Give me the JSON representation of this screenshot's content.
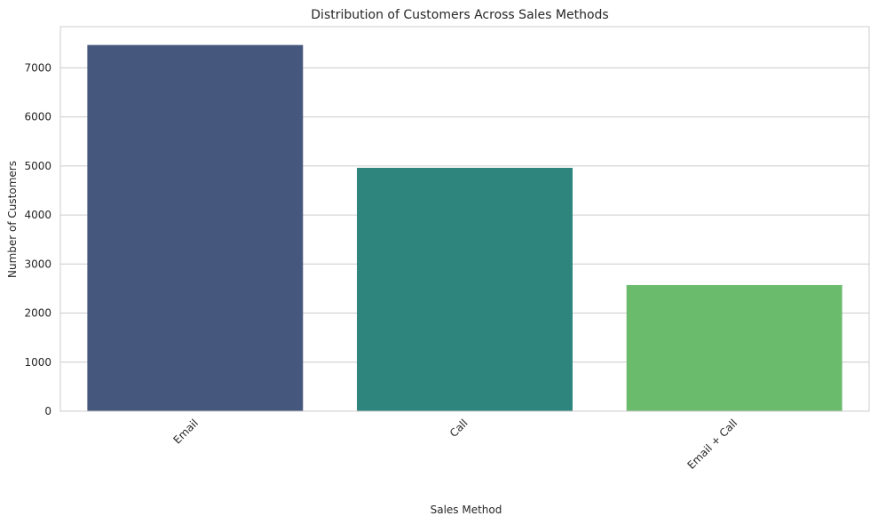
{
  "chart_data": {
    "type": "bar",
    "title": "Distribution of Customers Across Sales Methods",
    "xlabel": "Sales Method",
    "ylabel": "Number of Customers",
    "categories": [
      "Email",
      "Call",
      "Email + Call"
    ],
    "values": [
      7466,
      4962,
      2572
    ],
    "colors": [
      "#46577e",
      "#2e857e",
      "#6bbb6c"
    ],
    "ylim": [
      0,
      7840
    ],
    "yticks": [
      0,
      1000,
      2000,
      3000,
      4000,
      5000,
      6000,
      7000
    ],
    "ytick_labels": [
      "0",
      "1000",
      "2000",
      "3000",
      "4000",
      "5000",
      "6000",
      "7000"
    ],
    "xtick_rotation": 45,
    "grid": "y-major",
    "legend": "none"
  }
}
